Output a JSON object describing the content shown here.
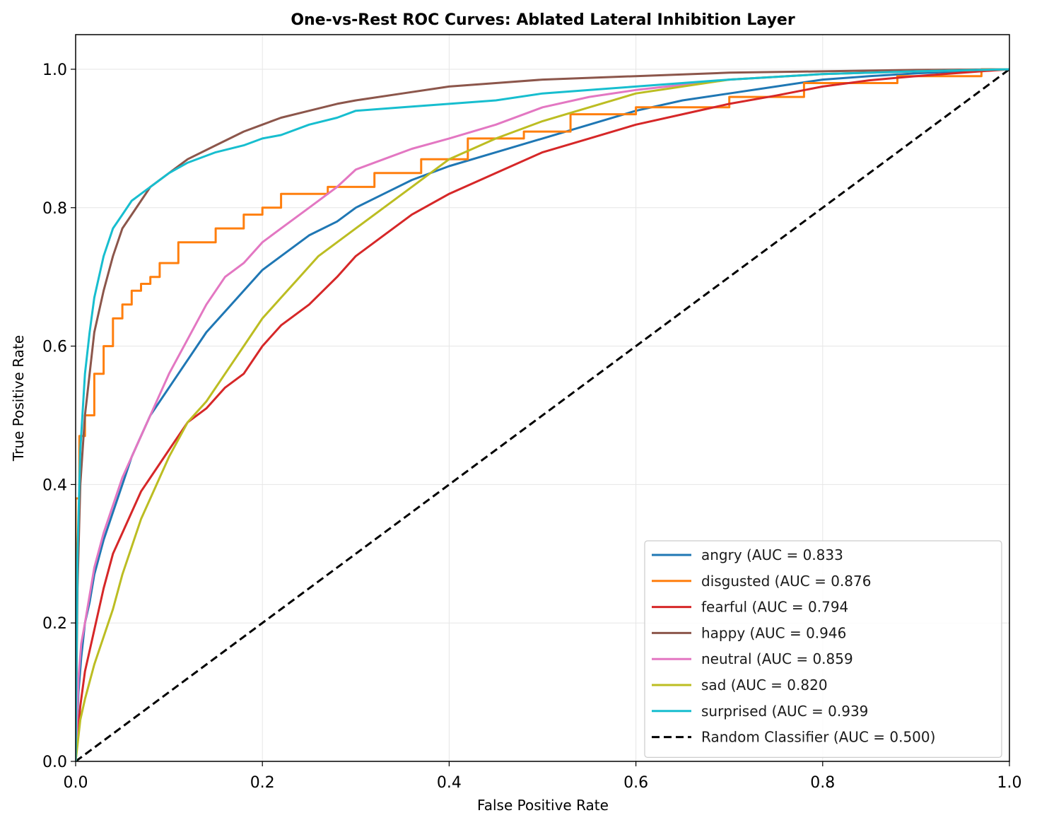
{
  "chart_data": {
    "type": "line",
    "title": "One-vs-Rest ROC Curves: Ablated Lateral Inhibition Layer",
    "xlabel": "False Positive Rate",
    "ylabel": "True Positive Rate",
    "xlim": [
      0.0,
      1.0
    ],
    "ylim": [
      0.0,
      1.05
    ],
    "xticks": [
      "0.0",
      "0.2",
      "0.4",
      "0.6",
      "0.8",
      "1.0"
    ],
    "yticks": [
      "0.0",
      "0.2",
      "0.4",
      "0.6",
      "0.8",
      "1.0"
    ],
    "grid": true,
    "legend_position": "lower-right",
    "series": [
      {
        "name": "angry (AUC = 0.833",
        "color": "#1f77b4",
        "x": [
          0,
          0.003,
          0.006,
          0.01,
          0.015,
          0.02,
          0.03,
          0.04,
          0.05,
          0.06,
          0.07,
          0.08,
          0.1,
          0.12,
          0.14,
          0.16,
          0.18,
          0.2,
          0.22,
          0.25,
          0.28,
          0.3,
          0.33,
          0.36,
          0.4,
          0.45,
          0.5,
          0.55,
          0.6,
          0.65,
          0.7,
          0.75,
          0.8,
          0.85,
          0.9,
          0.95,
          1.0
        ],
        "y": [
          0,
          0.1,
          0.15,
          0.2,
          0.23,
          0.27,
          0.32,
          0.36,
          0.4,
          0.44,
          0.47,
          0.5,
          0.54,
          0.58,
          0.62,
          0.65,
          0.68,
          0.71,
          0.73,
          0.76,
          0.78,
          0.8,
          0.82,
          0.84,
          0.86,
          0.88,
          0.9,
          0.92,
          0.94,
          0.955,
          0.965,
          0.975,
          0.985,
          0.99,
          0.994,
          0.997,
          1.0
        ]
      },
      {
        "name": "disgusted (AUC = 0.876",
        "color": "#ff7f0e",
        "x": [
          0,
          0,
          0.004,
          0.004,
          0.01,
          0.01,
          0.02,
          0.02,
          0.03,
          0.03,
          0.04,
          0.04,
          0.05,
          0.05,
          0.06,
          0.06,
          0.07,
          0.07,
          0.08,
          0.08,
          0.09,
          0.09,
          0.11,
          0.11,
          0.15,
          0.15,
          0.18,
          0.18,
          0.2,
          0.2,
          0.22,
          0.22,
          0.27,
          0.27,
          0.32,
          0.32,
          0.37,
          0.37,
          0.42,
          0.42,
          0.48,
          0.48,
          0.53,
          0.53,
          0.6,
          0.6,
          0.7,
          0.7,
          0.78,
          0.78,
          0.88,
          0.88,
          0.97,
          0.97,
          1.0
        ],
        "y": [
          0,
          0.38,
          0.38,
          0.47,
          0.47,
          0.5,
          0.5,
          0.56,
          0.56,
          0.6,
          0.6,
          0.64,
          0.64,
          0.66,
          0.66,
          0.68,
          0.68,
          0.69,
          0.69,
          0.7,
          0.7,
          0.72,
          0.72,
          0.75,
          0.75,
          0.77,
          0.77,
          0.79,
          0.79,
          0.8,
          0.8,
          0.82,
          0.82,
          0.83,
          0.83,
          0.85,
          0.85,
          0.87,
          0.87,
          0.9,
          0.9,
          0.91,
          0.91,
          0.935,
          0.935,
          0.945,
          0.945,
          0.96,
          0.96,
          0.98,
          0.98,
          0.99,
          0.99,
          1.0,
          1.0
        ]
      },
      {
        "name": "fearful (AUC = 0.794",
        "color": "#d62728",
        "x": [
          0,
          0.005,
          0.01,
          0.02,
          0.03,
          0.04,
          0.05,
          0.06,
          0.07,
          0.08,
          0.09,
          0.1,
          0.12,
          0.14,
          0.16,
          0.18,
          0.2,
          0.22,
          0.25,
          0.28,
          0.3,
          0.33,
          0.36,
          0.4,
          0.45,
          0.5,
          0.55,
          0.6,
          0.65,
          0.7,
          0.75,
          0.8,
          0.85,
          0.9,
          0.95,
          1.0
        ],
        "y": [
          0,
          0.08,
          0.13,
          0.19,
          0.25,
          0.3,
          0.33,
          0.36,
          0.39,
          0.41,
          0.43,
          0.45,
          0.49,
          0.51,
          0.54,
          0.56,
          0.6,
          0.63,
          0.66,
          0.7,
          0.73,
          0.76,
          0.79,
          0.82,
          0.85,
          0.88,
          0.9,
          0.92,
          0.935,
          0.95,
          0.962,
          0.975,
          0.984,
          0.99,
          0.995,
          1.0
        ]
      },
      {
        "name": "happy (AUC = 0.946",
        "color": "#8c564b",
        "x": [
          0,
          0.002,
          0.005,
          0.01,
          0.015,
          0.02,
          0.03,
          0.04,
          0.05,
          0.06,
          0.07,
          0.08,
          0.1,
          0.12,
          0.15,
          0.18,
          0.2,
          0.22,
          0.25,
          0.28,
          0.3,
          0.35,
          0.4,
          0.45,
          0.5,
          0.6,
          0.7,
          0.8,
          0.9,
          1.0
        ],
        "y": [
          0,
          0.25,
          0.4,
          0.5,
          0.56,
          0.62,
          0.68,
          0.73,
          0.77,
          0.79,
          0.81,
          0.83,
          0.85,
          0.87,
          0.89,
          0.91,
          0.92,
          0.93,
          0.94,
          0.95,
          0.955,
          0.965,
          0.975,
          0.98,
          0.985,
          0.99,
          0.995,
          0.997,
          0.999,
          1.0
        ]
      },
      {
        "name": "neutral (AUC = 0.859",
        "color": "#e377c2",
        "x": [
          0,
          0.003,
          0.006,
          0.01,
          0.015,
          0.02,
          0.03,
          0.04,
          0.05,
          0.06,
          0.07,
          0.08,
          0.1,
          0.12,
          0.14,
          0.16,
          0.18,
          0.2,
          0.22,
          0.25,
          0.28,
          0.3,
          0.33,
          0.36,
          0.4,
          0.45,
          0.5,
          0.55,
          0.6,
          0.7,
          0.8,
          0.9,
          1.0
        ],
        "y": [
          0,
          0.12,
          0.17,
          0.2,
          0.24,
          0.28,
          0.33,
          0.37,
          0.41,
          0.44,
          0.47,
          0.5,
          0.56,
          0.61,
          0.66,
          0.7,
          0.72,
          0.75,
          0.77,
          0.8,
          0.83,
          0.855,
          0.87,
          0.885,
          0.9,
          0.92,
          0.945,
          0.96,
          0.97,
          0.985,
          0.993,
          0.997,
          1.0
        ]
      },
      {
        "name": "sad (AUC = 0.820",
        "color": "#bcbd22",
        "x": [
          0,
          0.005,
          0.01,
          0.02,
          0.03,
          0.04,
          0.05,
          0.06,
          0.07,
          0.08,
          0.09,
          0.1,
          0.12,
          0.14,
          0.16,
          0.18,
          0.2,
          0.22,
          0.24,
          0.26,
          0.28,
          0.3,
          0.33,
          0.36,
          0.4,
          0.45,
          0.5,
          0.55,
          0.6,
          0.65,
          0.7,
          0.8,
          0.9,
          1.0
        ],
        "y": [
          0,
          0.06,
          0.09,
          0.14,
          0.18,
          0.22,
          0.27,
          0.31,
          0.35,
          0.38,
          0.41,
          0.44,
          0.49,
          0.52,
          0.56,
          0.6,
          0.64,
          0.67,
          0.7,
          0.73,
          0.75,
          0.77,
          0.8,
          0.83,
          0.87,
          0.9,
          0.925,
          0.945,
          0.965,
          0.975,
          0.985,
          0.993,
          0.997,
          1.0
        ]
      },
      {
        "name": "surprised (AUC = 0.939",
        "color": "#17becf",
        "x": [
          0,
          0.002,
          0.005,
          0.01,
          0.015,
          0.02,
          0.03,
          0.04,
          0.05,
          0.06,
          0.07,
          0.08,
          0.1,
          0.12,
          0.15,
          0.18,
          0.2,
          0.22,
          0.25,
          0.28,
          0.3,
          0.35,
          0.4,
          0.45,
          0.5,
          0.6,
          0.7,
          0.8,
          0.9,
          1.0
        ],
        "y": [
          0,
          0.3,
          0.45,
          0.56,
          0.62,
          0.67,
          0.73,
          0.77,
          0.79,
          0.81,
          0.82,
          0.83,
          0.85,
          0.865,
          0.88,
          0.89,
          0.9,
          0.905,
          0.92,
          0.93,
          0.94,
          0.945,
          0.95,
          0.955,
          0.965,
          0.975,
          0.985,
          0.993,
          0.997,
          1.0
        ]
      },
      {
        "name": "Random Classifier (AUC = 0.500)",
        "color": "#000000",
        "dashed": true,
        "x": [
          0,
          1
        ],
        "y": [
          0,
          1
        ]
      }
    ]
  }
}
